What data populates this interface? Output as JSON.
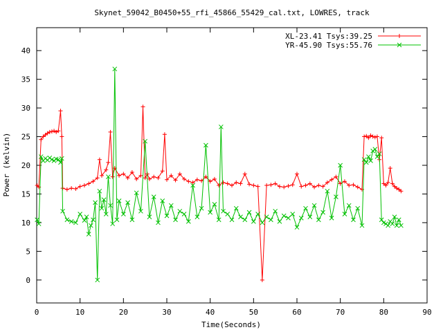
{
  "chart_data": {
    "type": "line",
    "title": "Skynet_59042_B0450+55_rfi_45866_55429_cal.txt, LOWRES, track",
    "xlabel": "Time(Seconds)",
    "ylabel": "Power (kelvin)",
    "xlim": [
      0,
      90
    ],
    "ylim": [
      -4,
      44
    ],
    "xticks": [
      0,
      10,
      20,
      30,
      40,
      50,
      60,
      70,
      80,
      90
    ],
    "yticks": [
      0,
      5,
      10,
      15,
      20,
      25,
      30,
      35,
      40
    ],
    "grid": false,
    "legend_position": "top-right",
    "series": [
      {
        "name": "XL-23.41 Tsys:39.25",
        "color": "#ff0000",
        "marker": "plus",
        "x": [
          0.1,
          0.5,
          1.0,
          1.5,
          2.0,
          2.5,
          3.0,
          3.5,
          4.0,
          4.5,
          5.0,
          5.5,
          5.8,
          6.0,
          7.0,
          8.0,
          9.0,
          10.0,
          11.0,
          12.0,
          13.0,
          14.0,
          14.5,
          15.0,
          16.0,
          16.5,
          17.0,
          17.5,
          18.0,
          19.0,
          20.0,
          21.0,
          22.0,
          23.0,
          24.0,
          24.5,
          25.0,
          25.5,
          26.0,
          27.0,
          28.0,
          29.0,
          29.5,
          30.0,
          31.0,
          32.0,
          33.0,
          34.0,
          35.0,
          36.0,
          37.0,
          38.0,
          39.0,
          40.0,
          41.0,
          42.0,
          43.0,
          44.0,
          45.0,
          46.0,
          47.0,
          48.0,
          49.0,
          50.0,
          51.0,
          52.0,
          53.0,
          54.0,
          55.0,
          56.0,
          57.0,
          58.0,
          59.0,
          60.0,
          61.0,
          62.0,
          63.0,
          64.0,
          65.0,
          66.0,
          67.0,
          68.0,
          69.0,
          70.0,
          71.0,
          72.0,
          73.0,
          74.0,
          75.0,
          75.5,
          76.0,
          76.5,
          77.0,
          77.5,
          78.0,
          78.5,
          79.0,
          79.5,
          80.0,
          80.5,
          81.0,
          81.5,
          82.0,
          82.5,
          83.0,
          83.5,
          84.0
        ],
        "y": [
          16.5,
          16.2,
          24.5,
          25.0,
          25.3,
          25.6,
          25.8,
          25.9,
          26.0,
          25.8,
          26.0,
          29.5,
          25.0,
          16.0,
          15.8,
          16.0,
          15.9,
          16.3,
          16.5,
          16.8,
          17.2,
          17.8,
          21.0,
          18.2,
          19.2,
          20.5,
          25.8,
          18.0,
          19.5,
          18.2,
          18.5,
          17.8,
          18.8,
          17.6,
          18.2,
          30.2,
          17.8,
          18.5,
          17.6,
          18.0,
          17.8,
          19.0,
          25.4,
          17.5,
          18.2,
          17.4,
          18.5,
          17.6,
          17.2,
          17.0,
          17.5,
          17.3,
          18.0,
          17.2,
          17.6,
          16.5,
          17.0,
          16.8,
          16.5,
          17.0,
          16.8,
          18.5,
          16.7,
          16.5,
          16.3,
          0.0,
          16.5,
          16.6,
          16.8,
          16.3,
          16.2,
          16.4,
          16.6,
          18.5,
          16.3,
          16.5,
          16.8,
          16.2,
          16.5,
          16.3,
          17.0,
          17.5,
          18.0,
          16.8,
          17.2,
          16.5,
          16.6,
          16.2,
          15.8,
          25.0,
          25.1,
          24.8,
          25.2,
          25.0,
          24.9,
          25.0,
          21.0,
          24.8,
          16.8,
          16.5,
          17.0,
          19.5,
          16.8,
          16.3,
          16.0,
          15.8,
          15.5
        ]
      },
      {
        "name": "YR-45.90 Tsys:55.76",
        "color": "#00c000",
        "marker": "cross",
        "x": [
          0.1,
          0.5,
          1.0,
          1.5,
          2.0,
          2.5,
          3.0,
          3.5,
          4.0,
          4.5,
          5.0,
          5.5,
          5.8,
          6.0,
          7.0,
          8.0,
          9.0,
          10.0,
          11.0,
          11.5,
          12.0,
          12.5,
          13.0,
          13.5,
          14.0,
          14.5,
          15.0,
          15.5,
          16.0,
          16.5,
          17.0,
          17.5,
          18.0,
          18.5,
          19.0,
          20.0,
          21.0,
          22.0,
          23.0,
          24.0,
          25.0,
          26.0,
          27.0,
          28.0,
          29.0,
          30.0,
          31.0,
          32.0,
          33.0,
          34.0,
          35.0,
          36.0,
          37.0,
          38.0,
          39.0,
          40.0,
          41.0,
          42.0,
          42.5,
          43.0,
          44.0,
          45.0,
          46.0,
          47.0,
          48.0,
          49.0,
          50.0,
          51.0,
          52.0,
          53.0,
          54.0,
          55.0,
          56.0,
          57.0,
          58.0,
          59.0,
          60.0,
          61.0,
          62.0,
          63.0,
          64.0,
          65.0,
          66.0,
          67.0,
          68.0,
          69.0,
          70.0,
          71.0,
          72.0,
          73.0,
          74.0,
          75.0,
          75.5,
          76.0,
          76.5,
          77.0,
          77.5,
          78.0,
          78.5,
          79.0,
          79.5,
          80.0,
          80.5,
          81.0,
          81.5,
          82.0,
          82.5,
          83.0,
          83.5,
          84.0
        ],
        "y": [
          10.5,
          9.8,
          21.5,
          20.8,
          21.2,
          20.9,
          21.3,
          21.0,
          20.8,
          21.1,
          21.0,
          20.5,
          21.2,
          12.0,
          10.5,
          10.2,
          10.0,
          11.5,
          10.4,
          11.0,
          8.0,
          9.5,
          10.5,
          13.5,
          0.0,
          15.5,
          12.5,
          14.0,
          11.5,
          18.0,
          13.0,
          9.8,
          36.8,
          10.5,
          13.8,
          11.5,
          13.5,
          10.5,
          15.2,
          12.0,
          24.2,
          11.0,
          14.5,
          10.0,
          13.8,
          11.2,
          13.0,
          10.5,
          12.0,
          11.5,
          10.2,
          16.5,
          11.0,
          12.5,
          23.5,
          11.8,
          13.2,
          10.5,
          26.7,
          12.0,
          11.5,
          10.5,
          12.5,
          11.0,
          10.5,
          11.8,
          10.2,
          11.5,
          10.0,
          11.0,
          10.5,
          12.0,
          10.2,
          11.2,
          10.8,
          11.5,
          9.2,
          10.8,
          12.5,
          11.0,
          13.0,
          10.5,
          11.8,
          15.5,
          10.8,
          14.5,
          20.0,
          11.5,
          13.0,
          10.5,
          12.5,
          9.5,
          21.0,
          20.5,
          21.5,
          20.8,
          22.5,
          22.8,
          21.5,
          22.0,
          10.5,
          10.0,
          9.8,
          9.5,
          10.2,
          9.8,
          11.0,
          9.5,
          10.5,
          9.5
        ]
      }
    ]
  }
}
